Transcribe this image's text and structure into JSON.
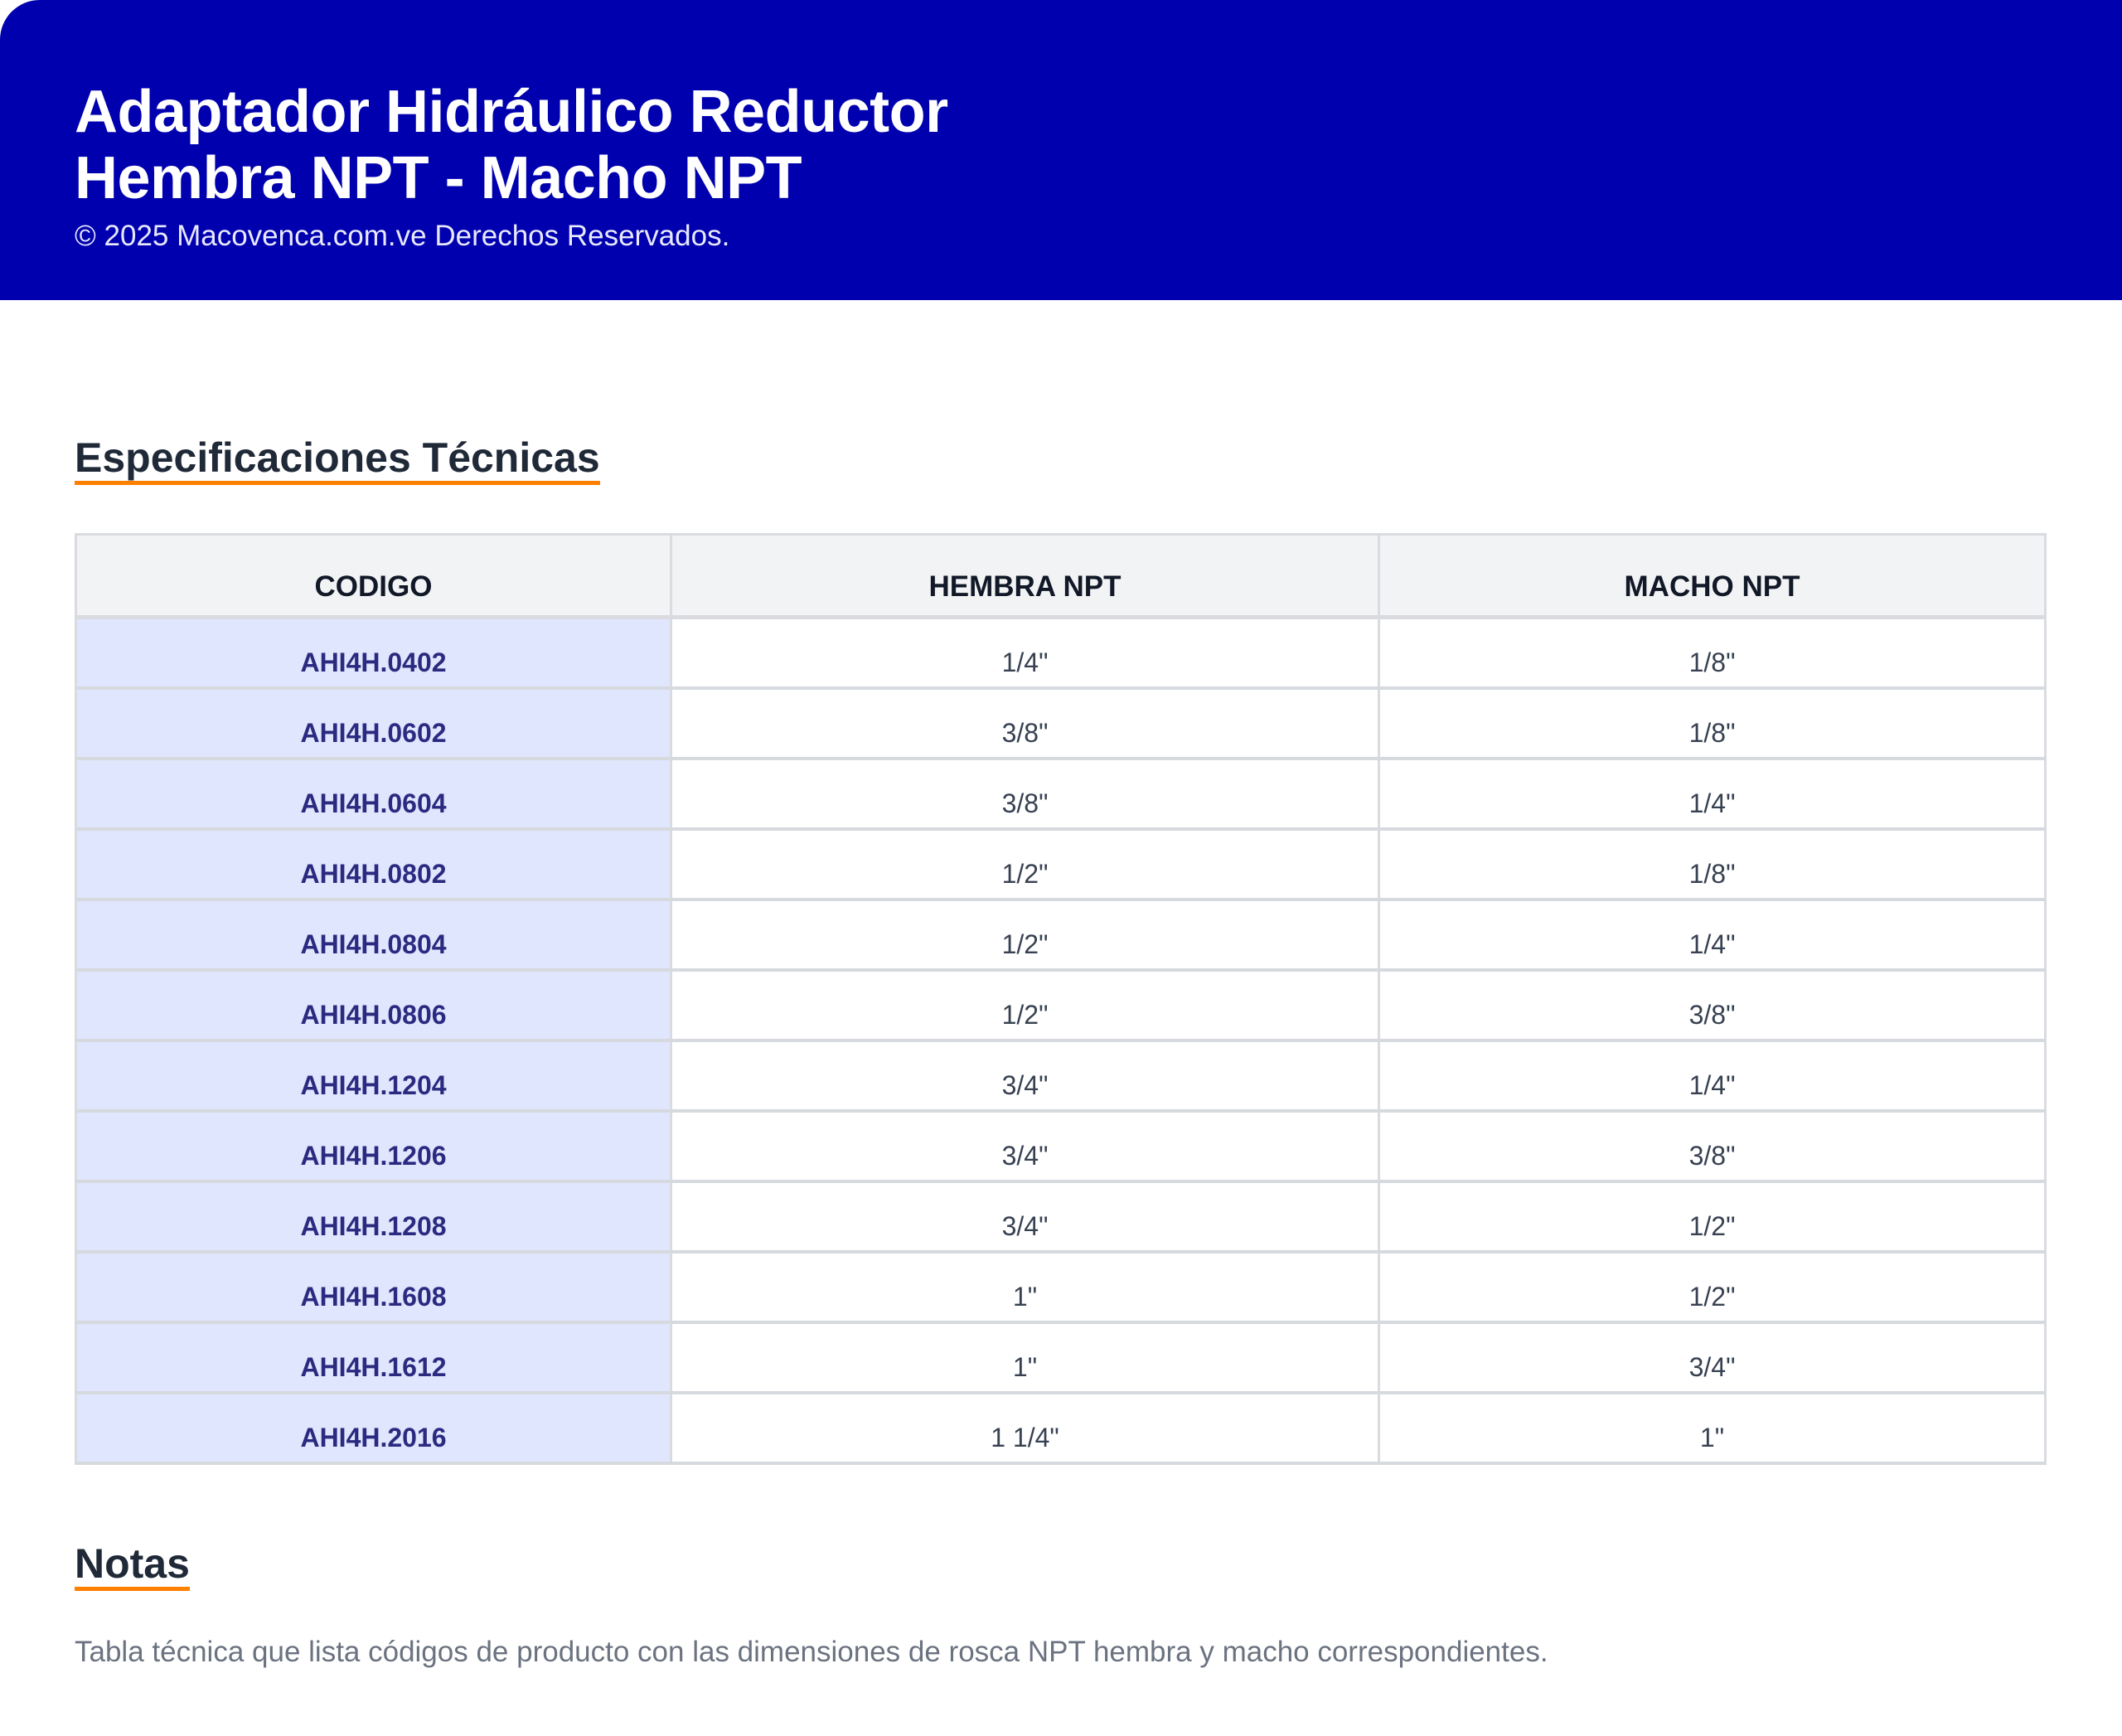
{
  "header": {
    "title_line1": "Adaptador Hidráulico Reductor",
    "title_line2": "Hembra NPT - Macho NPT",
    "copyright": "© 2025 Macovenca.com.ve Derechos Reservados."
  },
  "specs": {
    "heading": "Especificaciones Técnicas",
    "columns": [
      "CODIGO",
      "HEMBRA NPT",
      "MACHO NPT"
    ],
    "rows": [
      [
        "AHI4H.0402",
        "1/4\"",
        "1/8\""
      ],
      [
        "AHI4H.0602",
        "3/8\"",
        "1/8\""
      ],
      [
        "AHI4H.0604",
        "3/8\"",
        "1/4\""
      ],
      [
        "AHI4H.0802",
        "1/2\"",
        "1/8\""
      ],
      [
        "AHI4H.0804",
        "1/2\"",
        "1/4\""
      ],
      [
        "AHI4H.0806",
        "1/2\"",
        "3/8\""
      ],
      [
        "AHI4H.1204",
        "3/4\"",
        "1/4\""
      ],
      [
        "AHI4H.1206",
        "3/4\"",
        "3/8\""
      ],
      [
        "AHI4H.1208",
        "3/4\"",
        "1/2\""
      ],
      [
        "AHI4H.1608",
        "1\"",
        "1/2\""
      ],
      [
        "AHI4H.1612",
        "1\"",
        "3/4\""
      ],
      [
        "AHI4H.2016",
        "1 1/4\"",
        "1\""
      ]
    ]
  },
  "notes": {
    "heading": "Notas",
    "text": "Tabla técnica que lista códigos de producto con las dimensiones de rosca NPT hembra y macho correspondientes."
  },
  "colors": {
    "header_bg": "#0000AE",
    "accent": "#FF8000",
    "code_bg": "#E0E6FD"
  }
}
